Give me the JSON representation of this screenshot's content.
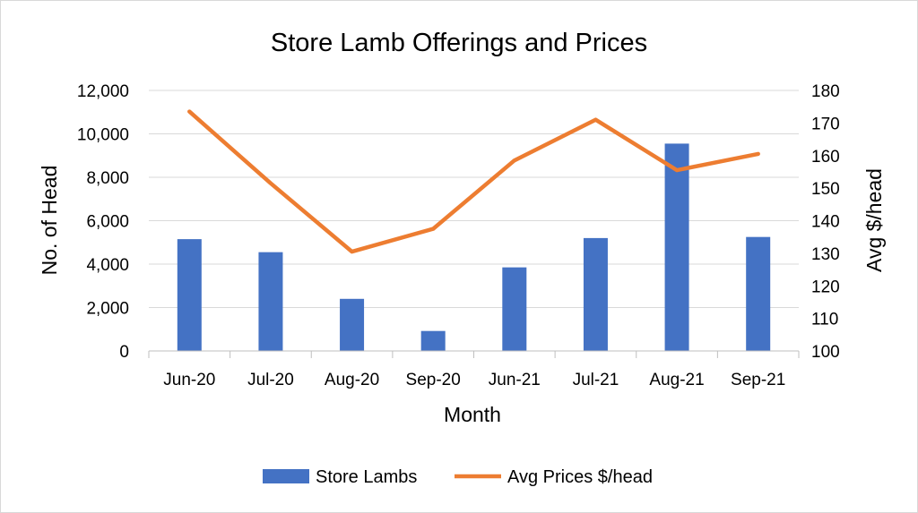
{
  "chart_data": {
    "type": "bar",
    "title": "Store Lamb Offerings and Prices",
    "xlabel": "Month",
    "ylabel": "No. of Head",
    "y2label": "Avg $/head",
    "categories": [
      "Jun-20",
      "Jul-20",
      "Aug-20",
      "Sep-20",
      "Jun-21",
      "Jul-21",
      "Aug-21",
      "Sep-21"
    ],
    "ylim": [
      0,
      12000
    ],
    "y_ticks": [
      0,
      2000,
      4000,
      6000,
      8000,
      10000,
      12000
    ],
    "y_tick_labels": [
      "0",
      "2,000",
      "4,000",
      "6,000",
      "8,000",
      "10,000",
      "12,000"
    ],
    "y2lim": [
      100,
      180
    ],
    "y2_ticks": [
      100,
      110,
      120,
      130,
      140,
      150,
      160,
      170,
      180
    ],
    "y2_tick_labels": [
      "100",
      "110",
      "120",
      "130",
      "140",
      "150",
      "160",
      "170",
      "180"
    ],
    "grid": true,
    "legend_position": "bottom",
    "series": [
      {
        "name": "Store Lambs",
        "type": "bar",
        "axis": "left",
        "color": "#4472c4",
        "values": [
          5150,
          4550,
          2400,
          920,
          3850,
          5200,
          9550,
          5250
        ]
      },
      {
        "name": "Avg Prices $/head",
        "type": "line",
        "axis": "right",
        "color": "#ed7d31",
        "values": [
          173.5,
          151.5,
          130.5,
          137.5,
          158.5,
          171,
          155.5,
          160.5
        ]
      }
    ]
  }
}
